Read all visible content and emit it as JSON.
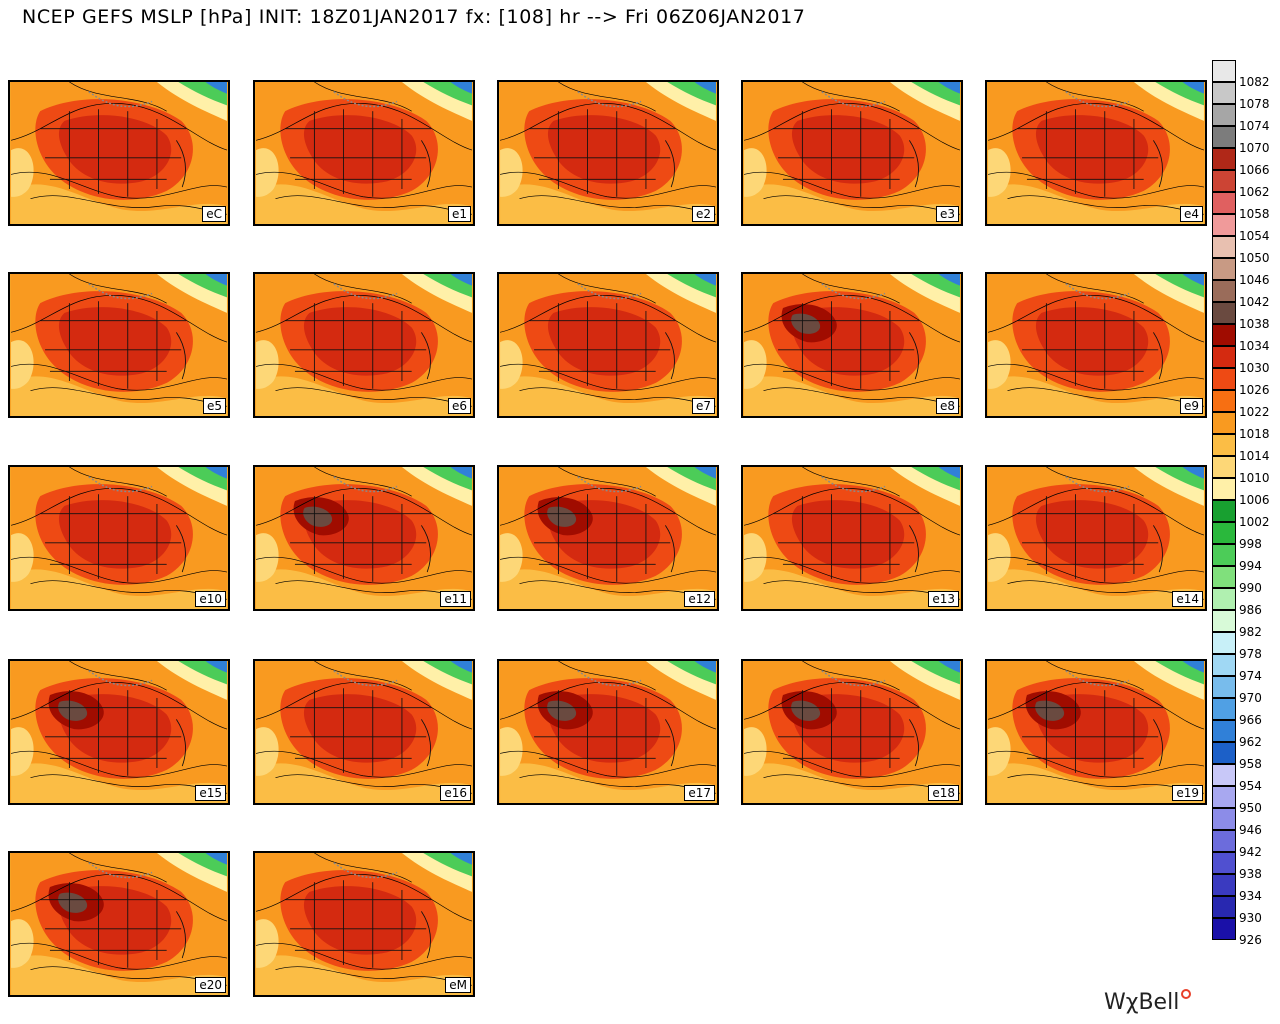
{
  "title": "NCEP GEFS MSLP [hPa] INIT: 18Z01JAN2017 fx: [108] hr --> Fri 06Z06JAN2017",
  "brand": "WχBell",
  "panels": [
    {
      "label": "eC",
      "variant": "mild"
    },
    {
      "label": "e1",
      "variant": "mild"
    },
    {
      "label": "e2",
      "variant": "mild"
    },
    {
      "label": "e3",
      "variant": "mild"
    },
    {
      "label": "e4",
      "variant": "mild"
    },
    {
      "label": "e5",
      "variant": "mild"
    },
    {
      "label": "e6",
      "variant": "mild"
    },
    {
      "label": "e7",
      "variant": "mild"
    },
    {
      "label": "e8",
      "variant": "strong"
    },
    {
      "label": "e9",
      "variant": "mild"
    },
    {
      "label": "e10",
      "variant": "mild"
    },
    {
      "label": "e11",
      "variant": "strong"
    },
    {
      "label": "e12",
      "variant": "strong"
    },
    {
      "label": "e13",
      "variant": "mild"
    },
    {
      "label": "e14",
      "variant": "mild"
    },
    {
      "label": "e15",
      "variant": "strong"
    },
    {
      "label": "e16",
      "variant": "mild"
    },
    {
      "label": "e17",
      "variant": "strong"
    },
    {
      "label": "e18",
      "variant": "strong"
    },
    {
      "label": "e19",
      "variant": "strong"
    },
    {
      "label": "e20",
      "variant": "strong"
    },
    {
      "label": "eM",
      "variant": "mild"
    }
  ],
  "legend": [
    {
      "value": "1082",
      "color": "#e8e8e8"
    },
    {
      "value": "1078",
      "color": "#c8c8c8"
    },
    {
      "value": "1074",
      "color": "#a6a6a6"
    },
    {
      "value": "1070",
      "color": "#7c7c7c"
    },
    {
      "value": "1066",
      "color": "#b02818"
    },
    {
      "value": "1062",
      "color": "#cc4434"
    },
    {
      "value": "1058",
      "color": "#e06060"
    },
    {
      "value": "1054",
      "color": "#f09a9a"
    },
    {
      "value": "1050",
      "color": "#e8c0b0"
    },
    {
      "value": "1046",
      "color": "#c89a84"
    },
    {
      "value": "1042",
      "color": "#9a6c5a"
    },
    {
      "value": "1038",
      "color": "#6a4a40"
    },
    {
      "value": "1034",
      "color": "#a00c00"
    },
    {
      "value": "1030",
      "color": "#d42a10"
    },
    {
      "value": "1026",
      "color": "#ee4a14"
    },
    {
      "value": "1022",
      "color": "#f76f12"
    },
    {
      "value": "1018",
      "color": "#f99a20"
    },
    {
      "value": "1014",
      "color": "#fbbd45"
    },
    {
      "value": "1010",
      "color": "#fdd777"
    },
    {
      "value": "1006",
      "color": "#fff0a8"
    },
    {
      "value": "1002",
      "color": "#18a030"
    },
    {
      "value": "998",
      "color": "#2ab83c"
    },
    {
      "value": "994",
      "color": "#4ccc58"
    },
    {
      "value": "990",
      "color": "#80e07c"
    },
    {
      "value": "986",
      "color": "#b0f0b0"
    },
    {
      "value": "982",
      "color": "#d8fad8"
    },
    {
      "value": "978",
      "color": "#c8f0f8"
    },
    {
      "value": "974",
      "color": "#a0d8f4"
    },
    {
      "value": "970",
      "color": "#78bcec"
    },
    {
      "value": "966",
      "color": "#50a0e4"
    },
    {
      "value": "962",
      "color": "#3080d8"
    },
    {
      "value": "958",
      "color": "#1c60c8"
    },
    {
      "value": "954",
      "color": "#c8c8f8"
    },
    {
      "value": "950",
      "color": "#a8a8f0"
    },
    {
      "value": "946",
      "color": "#8c8ce8"
    },
    {
      "value": "942",
      "color": "#6c6cdc"
    },
    {
      "value": "938",
      "color": "#5050d0"
    },
    {
      "value": "934",
      "color": "#3a3ac0"
    },
    {
      "value": "930",
      "color": "#2828b0"
    },
    {
      "value": "926",
      "color": "#1a10a8"
    }
  ]
}
